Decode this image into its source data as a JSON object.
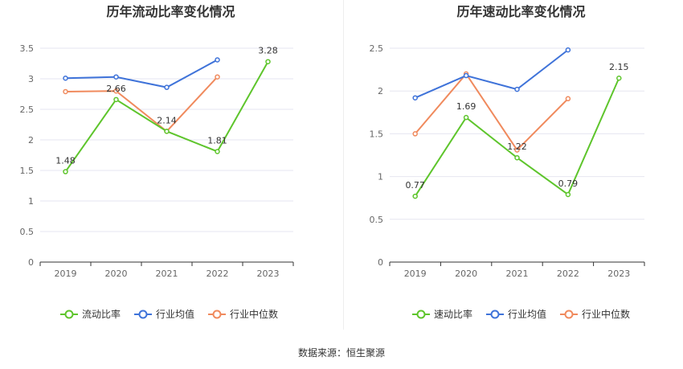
{
  "chart_data": [
    {
      "type": "line",
      "title": "历年流动比率变化情况",
      "categories": [
        "2019",
        "2020",
        "2021",
        "2022",
        "2023"
      ],
      "ylim": [
        0,
        3.5
      ],
      "yticks": [
        "0",
        "0.5",
        "1",
        "1.5",
        "2",
        "2.5",
        "3",
        "3.5"
      ],
      "grid": true,
      "legend_position": "bottom",
      "series": [
        {
          "name": "流动比率",
          "color": "#5ec52c",
          "values": [
            1.48,
            2.66,
            2.14,
            1.81,
            3.28
          ],
          "labels": [
            "1.48",
            "2.66",
            "2.14",
            "1.81",
            "3.28"
          ]
        },
        {
          "name": "行业均值",
          "color": "#3f73d9",
          "values": [
            3.01,
            3.03,
            2.86,
            3.31,
            null
          ]
        },
        {
          "name": "行业中位数",
          "color": "#f08a5d",
          "values": [
            2.79,
            2.8,
            2.14,
            3.03,
            null
          ]
        }
      ]
    },
    {
      "type": "line",
      "title": "历年速动比率变化情况",
      "categories": [
        "2019",
        "2020",
        "2021",
        "2022",
        "2023"
      ],
      "ylim": [
        0,
        2.5
      ],
      "yticks": [
        "0",
        "0.5",
        "1",
        "1.5",
        "2",
        "2.5"
      ],
      "grid": true,
      "legend_position": "bottom",
      "series": [
        {
          "name": "速动比率",
          "color": "#5ec52c",
          "values": [
            0.77,
            1.69,
            1.22,
            0.79,
            2.15
          ],
          "labels": [
            "0.77",
            "1.69",
            "1.22",
            "0.79",
            "2.15"
          ]
        },
        {
          "name": "行业均值",
          "color": "#3f73d9",
          "values": [
            1.92,
            2.18,
            2.02,
            2.48,
            null
          ]
        },
        {
          "name": "行业中位数",
          "color": "#f08a5d",
          "values": [
            1.5,
            2.2,
            1.31,
            1.91,
            null
          ]
        }
      ]
    }
  ],
  "footer": {
    "source": "数据来源：恒生聚源"
  }
}
